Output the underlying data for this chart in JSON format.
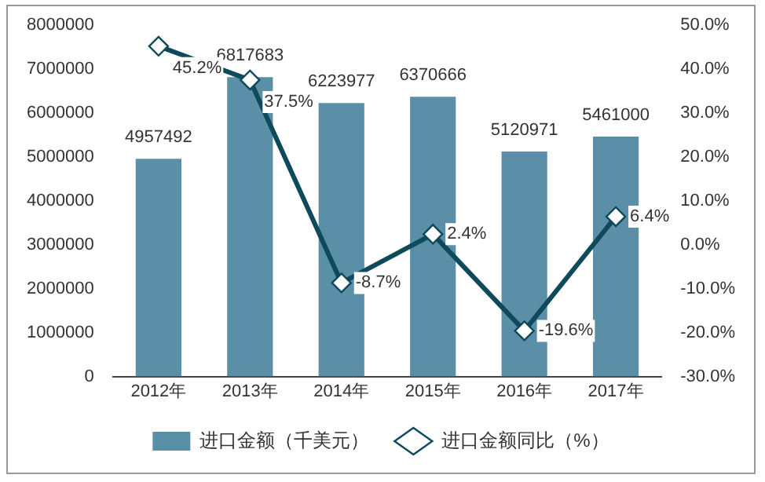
{
  "chart_data": {
    "type": "bar",
    "categories": [
      "2012年",
      "2013年",
      "2014年",
      "2015年",
      "2016年",
      "2017年"
    ],
    "series": [
      {
        "name": "进口金额（千美元）",
        "color": "#5b8fa8",
        "values": [
          4957492,
          6817683,
          6223977,
          6370666,
          5120971,
          5461000
        ],
        "value_labels": [
          "4957492",
          "6817683",
          "6223977",
          "6370666",
          "5120971",
          "5461000"
        ]
      },
      {
        "name": "进口金额同比（%）",
        "type": "line",
        "axis": "y2",
        "color": "#0e4a5c",
        "values": [
          45.2,
          37.5,
          -8.7,
          2.4,
          -19.6,
          6.4
        ],
        "value_labels": [
          "45.2%",
          "37.5%",
          "-8.7%",
          "2.4%",
          "-19.6%",
          "6.4%"
        ]
      }
    ],
    "ylim": [
      0,
      8000000
    ],
    "yticks": [
      0,
      1000000,
      2000000,
      3000000,
      4000000,
      5000000,
      6000000,
      7000000,
      8000000
    ],
    "y2lim": [
      -30,
      50
    ],
    "y2ticks": [
      {
        "value": -30,
        "label": "-30.0%"
      },
      {
        "value": -20,
        "label": "-20.0%"
      },
      {
        "value": -10,
        "label": "-10.0%"
      },
      {
        "value": 0,
        "label": "0.0%"
      },
      {
        "value": 10,
        "label": "10.0%"
      },
      {
        "value": 20,
        "label": "20.0%"
      },
      {
        "value": 30,
        "label": "30.0%"
      },
      {
        "value": 40,
        "label": "40.0%"
      },
      {
        "value": 50,
        "label": "50.0%"
      }
    ],
    "legend": "bottom",
    "marker": "diamond",
    "grid": false
  }
}
